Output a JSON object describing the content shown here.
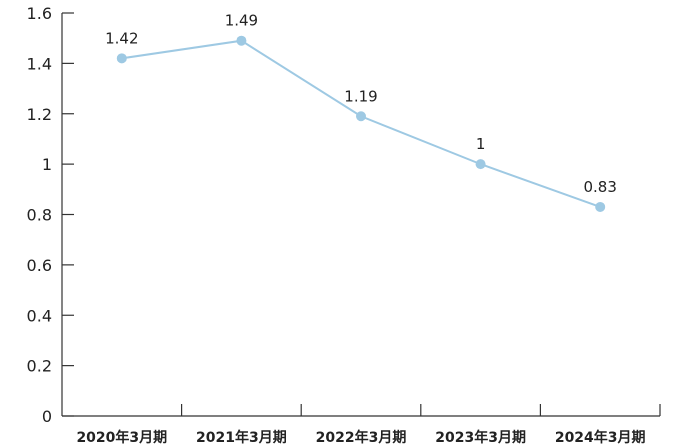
{
  "chart_data": {
    "type": "line",
    "categories": [
      "2020年3月期",
      "2021年3月期",
      "2022年3月期",
      "2023年3月期",
      "2024年3月期"
    ],
    "series": [
      {
        "values": [
          1.42,
          1.49,
          1.19,
          1,
          0.83
        ]
      }
    ],
    "data_labels": [
      "1.42",
      "1.49",
      "1.19",
      "1",
      "0.83"
    ],
    "y_ticks": [
      "0",
      "0.2",
      "0.4",
      "0.6",
      "0.8",
      "1",
      "1.2",
      "1.4",
      "1.6"
    ],
    "ylim": [
      0,
      1.6
    ],
    "grid": false,
    "legend": "none",
    "line_color": "#9ec9e3",
    "marker_color": "#9ec9e3"
  }
}
